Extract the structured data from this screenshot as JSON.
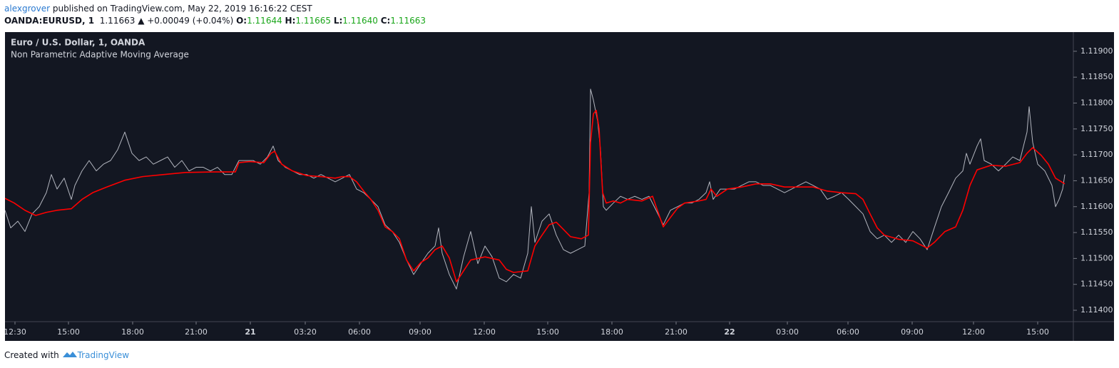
{
  "header": {
    "author": "alexgrover",
    "published": "published on TradingView.com, May 22, 2019 16:16:22 CEST",
    "symbol": "OANDA:EURUSD, 1",
    "last": "1.11663",
    "change": "▲ +0.00049 (+0.04%)",
    "open_label": "O:",
    "open": "1.11644",
    "high_label": "H:",
    "high": "1.11665",
    "low_label": "L:",
    "low": "1.11640",
    "close_label": "C:",
    "close": "1.11663"
  },
  "footer": {
    "text": "Created with",
    "brand": "TradingView"
  },
  "chart_data": {
    "type": "line",
    "background": "#131722",
    "xlim": [
      0,
      2996
    ],
    "xticks": [
      {
        "value": 28,
        "label": "12:30"
      },
      {
        "value": 178,
        "label": "15:00"
      },
      {
        "value": 358,
        "label": "18:00"
      },
      {
        "value": 536,
        "label": "21:00"
      },
      {
        "value": 688,
        "label": "21"
      },
      {
        "value": 842,
        "label": "03:20"
      },
      {
        "value": 994,
        "label": "06:00"
      },
      {
        "value": 1164,
        "label": "09:00"
      },
      {
        "value": 1344,
        "label": "12:00"
      },
      {
        "value": 1522,
        "label": "15:00"
      },
      {
        "value": 1702,
        "label": "18:00"
      },
      {
        "value": 1882,
        "label": "21:00"
      },
      {
        "value": 2032,
        "label": "22"
      },
      {
        "value": 2194,
        "label": "03:00"
      },
      {
        "value": 2364,
        "label": "06:00"
      },
      {
        "value": 2544,
        "label": "09:00"
      },
      {
        "value": 2716,
        "label": "12:00"
      },
      {
        "value": 2896,
        "label": "15:00"
      }
    ],
    "ylim": [
      1.11378,
      1.11937
    ],
    "yticks": [
      {
        "value": 1.119,
        "label": "1.11900"
      },
      {
        "value": 1.1185,
        "label": "1.11850"
      },
      {
        "value": 1.118,
        "label": "1.11800"
      },
      {
        "value": 1.1175,
        "label": "1.11750"
      },
      {
        "value": 1.117,
        "label": "1.11700"
      },
      {
        "value": 1.1165,
        "label": "1.11650"
      },
      {
        "value": 1.116,
        "label": "1.11600"
      },
      {
        "value": 1.1155,
        "label": "1.11550"
      },
      {
        "value": 1.115,
        "label": "1.11500"
      },
      {
        "value": 1.1145,
        "label": "1.11450"
      },
      {
        "value": 1.114,
        "label": "1.11400"
      }
    ],
    "grid": false,
    "series": [
      {
        "name": "Euro / U.S. Dollar, 1, OANDA",
        "color": "#b2b5be",
        "x": [
          0,
          16,
          36,
          56,
          76,
          96,
          116,
          130,
          146,
          166,
          186,
          196,
          216,
          236,
          256,
          276,
          296,
          316,
          336,
          356,
          376,
          396,
          416,
          436,
          456,
          476,
          496,
          516,
          536,
          556,
          576,
          596,
          616,
          636,
          656,
          676,
          696,
          716,
          736,
          752,
          766,
          786,
          806,
          826,
          846,
          866,
          886,
          906,
          926,
          946,
          966,
          986,
          1006,
          1026,
          1046,
          1066,
          1086,
          1106,
          1126,
          1146,
          1166,
          1186,
          1206,
          1216,
          1226,
          1246,
          1266,
          1286,
          1306,
          1326,
          1346,
          1366,
          1386,
          1406,
          1426,
          1446,
          1466,
          1476,
          1486,
          1506,
          1526,
          1546,
          1566,
          1586,
          1606,
          1626,
          1638,
          1642,
          1650,
          1662,
          1670,
          1678,
          1686,
          1706,
          1726,
          1746,
          1766,
          1786,
          1806,
          1826,
          1846,
          1866,
          1886,
          1906,
          1926,
          1946,
          1966,
          1976,
          1986,
          2006,
          2026,
          2046,
          2066,
          2086,
          2106,
          2126,
          2146,
          2166,
          2186,
          2206,
          2226,
          2246,
          2266,
          2286,
          2306,
          2326,
          2346,
          2366,
          2386,
          2406,
          2426,
          2446,
          2466,
          2486,
          2506,
          2526,
          2546,
          2566,
          2586,
          2606,
          2626,
          2646,
          2666,
          2686,
          2696,
          2706,
          2726,
          2736,
          2746,
          2766,
          2786,
          2806,
          2826,
          2846,
          2866,
          2872,
          2882,
          2896,
          2916,
          2936,
          2946,
          2956,
          2966,
          2972
        ],
        "values": [
          1.11593,
          1.11559,
          1.11572,
          1.11552,
          1.11586,
          1.116,
          1.11627,
          1.11662,
          1.11634,
          1.11655,
          1.11614,
          1.11641,
          1.11669,
          1.11689,
          1.11669,
          1.11682,
          1.11689,
          1.1171,
          1.11744,
          1.11703,
          1.11689,
          1.11696,
          1.11682,
          1.11689,
          1.11696,
          1.11676,
          1.11689,
          1.11669,
          1.11676,
          1.11676,
          1.11669,
          1.11676,
          1.11662,
          1.11662,
          1.11689,
          1.11689,
          1.11689,
          1.11682,
          1.11696,
          1.11717,
          1.11689,
          1.11676,
          1.11669,
          1.11662,
          1.11662,
          1.11655,
          1.11662,
          1.11655,
          1.11648,
          1.11655,
          1.11662,
          1.11634,
          1.11627,
          1.11614,
          1.116,
          1.11565,
          1.11552,
          1.11531,
          1.11497,
          1.11469,
          1.1149,
          1.1151,
          1.11524,
          1.11559,
          1.1151,
          1.11469,
          1.11441,
          1.11503,
          1.11552,
          1.1149,
          1.11524,
          1.11503,
          1.11462,
          1.11455,
          1.11469,
          1.11462,
          1.1151,
          1.116,
          1.11531,
          1.11572,
          1.11586,
          1.11545,
          1.11517,
          1.1151,
          1.11517,
          1.11524,
          1.11627,
          1.11827,
          1.11806,
          1.11765,
          1.1171,
          1.116,
          1.11593,
          1.11607,
          1.1162,
          1.11614,
          1.1162,
          1.11614,
          1.1162,
          1.11593,
          1.11565,
          1.11593,
          1.116,
          1.11607,
          1.11607,
          1.11614,
          1.11627,
          1.11648,
          1.11614,
          1.11634,
          1.11634,
          1.11634,
          1.11641,
          1.11648,
          1.11648,
          1.11641,
          1.11641,
          1.11634,
          1.11627,
          1.11634,
          1.11641,
          1.11648,
          1.11641,
          1.11634,
          1.11614,
          1.1162,
          1.11627,
          1.11614,
          1.116,
          1.11586,
          1.11552,
          1.11538,
          1.11545,
          1.11531,
          1.11545,
          1.11531,
          1.11552,
          1.11538,
          1.11517,
          1.11559,
          1.116,
          1.11627,
          1.11655,
          1.11669,
          1.11703,
          1.11682,
          1.11717,
          1.11731,
          1.11689,
          1.11682,
          1.11669,
          1.11682,
          1.11696,
          1.11689,
          1.11744,
          1.11793,
          1.11724,
          1.11682,
          1.11669,
          1.11641,
          1.116,
          1.11614,
          1.11634,
          1.11662
        ]
      },
      {
        "name": "Non Parametric Adaptive Moving Average",
        "color": "#ff0000",
        "x": [
          0,
          26,
          56,
          86,
          116,
          146,
          186,
          216,
          246,
          286,
          336,
          386,
          446,
          506,
          586,
          646,
          656,
          686,
          726,
          746,
          756,
          776,
          806,
          846,
          886,
          926,
          946,
          966,
          986,
          1006,
          1026,
          1046,
          1066,
          1086,
          1106,
          1126,
          1146,
          1166,
          1186,
          1206,
          1226,
          1246,
          1266,
          1286,
          1306,
          1346,
          1386,
          1406,
          1426,
          1466,
          1486,
          1506,
          1526,
          1546,
          1566,
          1586,
          1616,
          1636,
          1642,
          1650,
          1658,
          1666,
          1676,
          1686,
          1706,
          1726,
          1746,
          1786,
          1816,
          1826,
          1846,
          1866,
          1886,
          1906,
          1946,
          1966,
          1980,
          1996,
          2026,
          2066,
          2106,
          2146,
          2186,
          2266,
          2306,
          2346,
          2386,
          2406,
          2426,
          2446,
          2466,
          2506,
          2546,
          2586,
          2606,
          2636,
          2666,
          2686,
          2706,
          2726,
          2766,
          2806,
          2846,
          2866,
          2882,
          2906,
          2926,
          2946,
          2972
        ],
        "values": [
          1.11616,
          1.11607,
          1.11593,
          1.11583,
          1.11589,
          1.11593,
          1.11596,
          1.11614,
          1.11627,
          1.11638,
          1.11651,
          1.11658,
          1.11662,
          1.11666,
          1.11667,
          1.11667,
          1.11685,
          1.11687,
          1.11685,
          1.11703,
          1.11707,
          1.11682,
          1.11669,
          1.1166,
          1.11658,
          1.11655,
          1.11658,
          1.11658,
          1.11648,
          1.1163,
          1.11614,
          1.11593,
          1.11561,
          1.11552,
          1.11538,
          1.11497,
          1.11476,
          1.11492,
          1.11501,
          1.11517,
          1.11524,
          1.11501,
          1.11455,
          1.11476,
          1.11497,
          1.11503,
          1.11497,
          1.11479,
          1.11473,
          1.11476,
          1.11524,
          1.11545,
          1.11565,
          1.1157,
          1.11556,
          1.11542,
          1.11538,
          1.11545,
          1.11724,
          1.11779,
          1.11786,
          1.11751,
          1.11627,
          1.11607,
          1.11611,
          1.11607,
          1.11614,
          1.11611,
          1.1162,
          1.116,
          1.11561,
          1.11579,
          1.11597,
          1.11607,
          1.11611,
          1.11614,
          1.11634,
          1.1162,
          1.11634,
          1.11638,
          1.11644,
          1.11644,
          1.11638,
          1.11638,
          1.1163,
          1.11627,
          1.11625,
          1.11614,
          1.11586,
          1.11559,
          1.11545,
          1.11537,
          1.11534,
          1.1152,
          1.11531,
          1.11552,
          1.11561,
          1.11593,
          1.11641,
          1.11671,
          1.1168,
          1.11678,
          1.11685,
          1.11703,
          1.11714,
          1.11699,
          1.11682,
          1.11655,
          1.11644
        ]
      }
    ]
  }
}
